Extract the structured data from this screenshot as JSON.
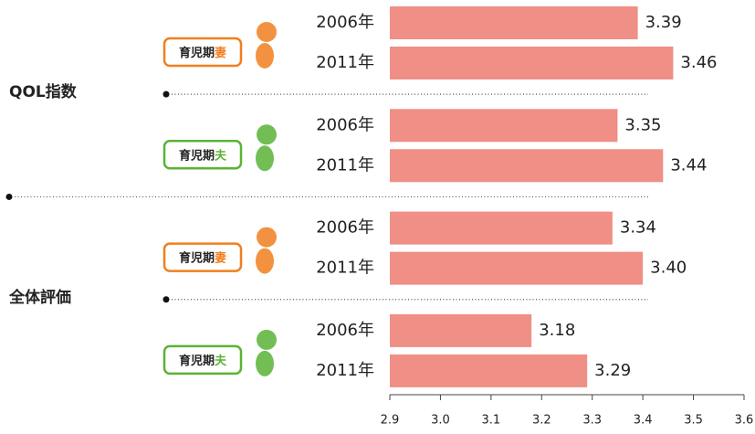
{
  "chart_data": {
    "type": "bar",
    "orientation": "horizontal",
    "color": "#ef8f86",
    "xlim": [
      2.9,
      3.6
    ],
    "xticks": [
      2.9,
      {
        "value": 3,
        "label": "3.0"
      },
      3.1,
      3.2,
      3.3,
      3.4,
      3.5,
      3.6
    ],
    "sections": [
      {
        "label": "QOL指数",
        "groups": [
          {
            "badge": {
              "text": "育児期",
              "role": "妻",
              "color": "#f07f1f"
            },
            "categories": [
              "2006年",
              "2011年"
            ],
            "values": [
              3.39,
              3.46
            ],
            "value_labels": [
              "3.39",
              "3.46"
            ]
          },
          {
            "badge": {
              "text": "育児期",
              "role": "夫",
              "color": "#5bb336"
            },
            "categories": [
              "2006年",
              "2011年"
            ],
            "values": [
              3.35,
              3.44
            ],
            "value_labels": [
              "3.35",
              "3.44"
            ]
          }
        ]
      },
      {
        "label": "全体評価",
        "groups": [
          {
            "badge": {
              "text": "育児期",
              "role": "妻",
              "color": "#f07f1f"
            },
            "categories": [
              "2006年",
              "2011年"
            ],
            "values": [
              3.34,
              3.4
            ],
            "value_labels": [
              "3.34",
              "3.40"
            ]
          },
          {
            "badge": {
              "text": "育児期",
              "role": "夫",
              "color": "#5bb336"
            },
            "categories": [
              "2006年",
              "2011年"
            ],
            "values": [
              3.18,
              3.29
            ],
            "value_labels": [
              "3.18",
              "3.29"
            ]
          }
        ]
      }
    ]
  }
}
